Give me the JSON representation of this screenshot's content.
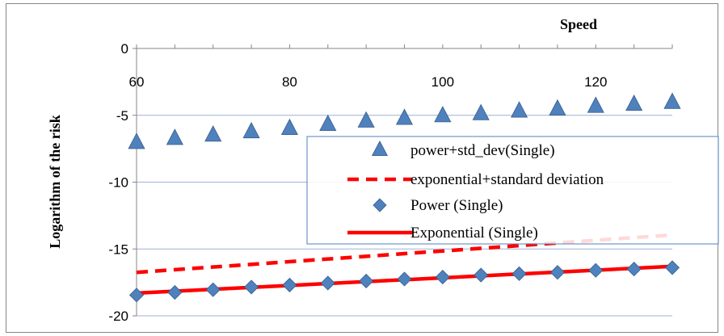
{
  "chart_data": {
    "type": "scatter",
    "xlabel": "Speed",
    "ylabel": "Logarithm of the risk",
    "xlim": [
      60,
      130
    ],
    "ylim": [
      -20,
      0
    ],
    "x_ticks": [
      "60",
      "80",
      "100",
      "120"
    ],
    "y_ticks": [
      "0",
      "-5",
      "-10",
      "-15",
      "-20"
    ],
    "grid": "horizontal",
    "legend_position": "right",
    "series": [
      {
        "name": "power+std_dev(Single)",
        "style": "triangle-markers",
        "color": "#4F81BD",
        "x": [
          60,
          65,
          70,
          75,
          80,
          85,
          90,
          95,
          100,
          105,
          110,
          115,
          120,
          125,
          130
        ],
        "y": [
          -7.0,
          -6.7,
          -6.45,
          -6.2,
          -5.95,
          -5.65,
          -5.4,
          -5.2,
          -5.0,
          -4.85,
          -4.65,
          -4.5,
          -4.3,
          -4.15,
          -4.0
        ]
      },
      {
        "name": "exponential+standard deviation",
        "style": "dashed-line",
        "color": "#FF0000",
        "x": [
          60,
          130
        ],
        "y": [
          -16.75,
          -13.95
        ]
      },
      {
        "name": "Power (Single)",
        "style": "diamond-markers",
        "color": "#4F81BD",
        "x": [
          60,
          65,
          70,
          75,
          80,
          85,
          90,
          95,
          100,
          105,
          110,
          115,
          120,
          125,
          130
        ],
        "y": [
          -18.45,
          -18.25,
          -18.05,
          -17.85,
          -17.7,
          -17.55,
          -17.4,
          -17.25,
          -17.1,
          -16.95,
          -16.85,
          -16.75,
          -16.6,
          -16.5,
          -16.4
        ]
      },
      {
        "name": "Exponential (Single)",
        "style": "solid-line",
        "color": "#FF0000",
        "x": [
          60,
          130
        ],
        "y": [
          -18.3,
          -16.3
        ]
      }
    ]
  }
}
